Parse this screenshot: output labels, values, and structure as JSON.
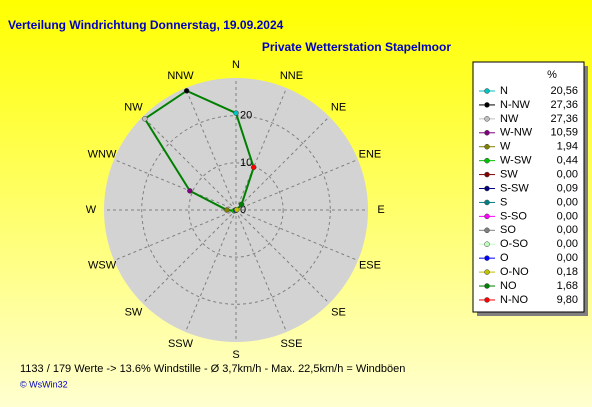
{
  "chart_data": {
    "type": "radar",
    "title": "Verteilung Windrichtung   Donnerstag, 19.09.2024",
    "subtitle": "Private Wetterstation Stapelmoor",
    "footer": "1133 / 179 Werte  -> 13.6% Windstille   -   Ø 3,7km/h  -  Max. 22,5km/h = Windböen",
    "credit": "© WsWin32",
    "categories": [
      "N",
      "NNE",
      "NE",
      "ENE",
      "E",
      "ESE",
      "SE",
      "SSE",
      "S",
      "SSW",
      "SW",
      "WSW",
      "W",
      "WNW",
      "NW",
      "NNW"
    ],
    "legend_title": "%",
    "direction": "counterclockwise",
    "labels": [
      "N",
      "N-NW",
      "NW",
      "W-NW",
      "W",
      "W-SW",
      "SW",
      "S-SW",
      "S",
      "S-SO",
      "SO",
      "O-SO",
      "O",
      "O-NO",
      "NO",
      "N-NO"
    ],
    "values": [
      20.56,
      27.36,
      27.36,
      10.59,
      1.94,
      0.44,
      0,
      0.09,
      0,
      0,
      0,
      0,
      0,
      0.18,
      1.68,
      9.8
    ],
    "value_labels": [
      "20,56",
      "27,36",
      "27,36",
      "10,59",
      "1,94",
      "0,44",
      "0,00",
      "0,09",
      "0,00",
      "0,00",
      "0,00",
      "0,00",
      "0,00",
      "0,18",
      "1,68",
      "9,80"
    ],
    "colors": [
      "#00c0c0",
      "#000000",
      "#c0c0c0",
      "#800080",
      "#808000",
      "#00c000",
      "#800000",
      "#000080",
      "#008080",
      "#ff00ff",
      "#808080",
      "#c0ffc0",
      "#0000ff",
      "#c0c000",
      "#008000",
      "#ff0000"
    ],
    "line_color": "#008000",
    "ylim": [
      0,
      28
    ],
    "yticks": [
      0,
      10,
      20
    ],
    "grid": true
  }
}
